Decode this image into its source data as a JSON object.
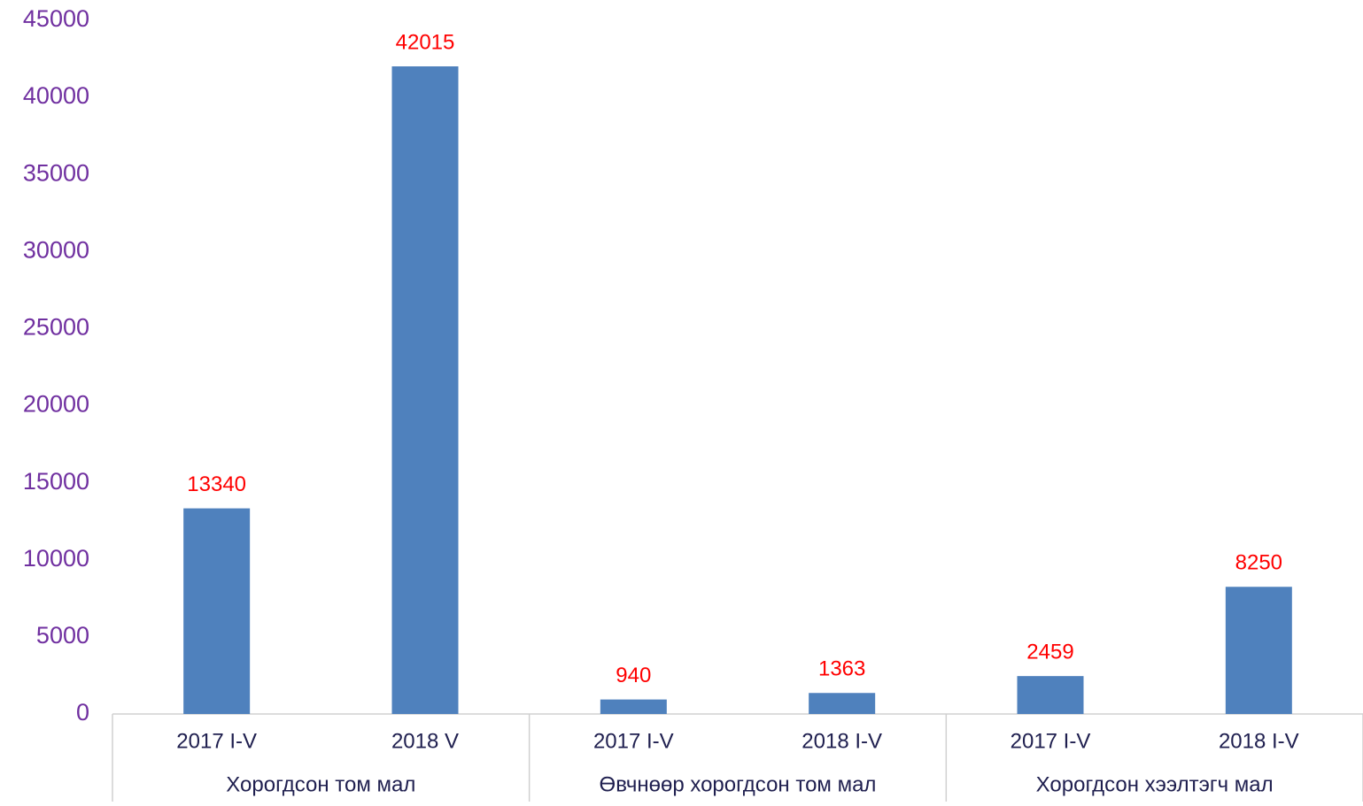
{
  "chart_data": {
    "type": "bar",
    "categories": [
      "2017 I-V",
      "2018 V",
      "2017 I-V",
      "2018 I-V",
      "2017 I-V",
      "2018 I-V"
    ],
    "group_labels": [
      "Хорогдсон том мал",
      "Өвчнөөр хорогдсон том мал",
      "Хорогдсон хээлтэгч мал"
    ],
    "values": [
      13340,
      42015,
      940,
      1363,
      2459,
      8250
    ],
    "color": "#4f81bd",
    "ylim": [
      0,
      45000
    ],
    "yticks": [
      0,
      5000,
      10000,
      15000,
      20000,
      25000,
      30000,
      35000,
      40000,
      45000
    ],
    "grid": false
  }
}
